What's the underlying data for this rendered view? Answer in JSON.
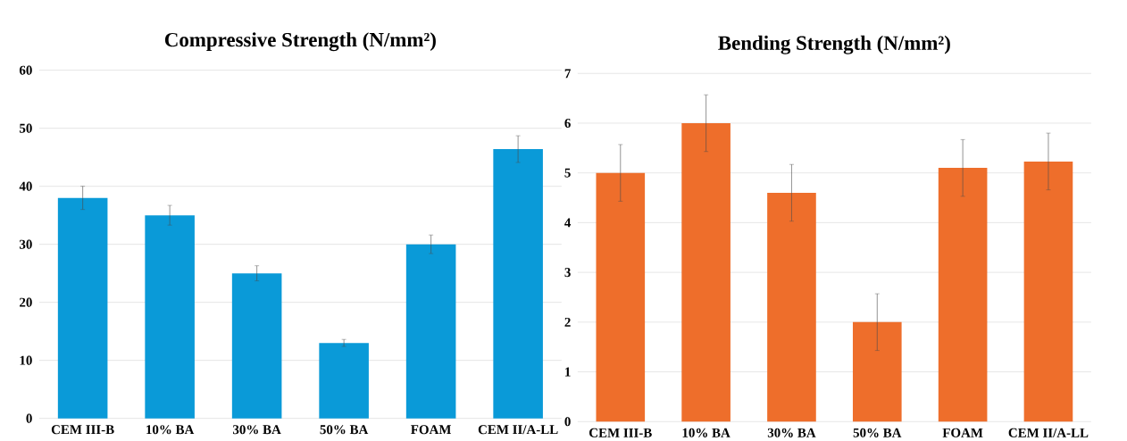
{
  "chart_data": [
    {
      "type": "bar",
      "title": "Compressive Strength (N/mm²)",
      "categories": [
        "CEM III-B",
        "10% BA",
        "30% BA",
        "50% BA",
        "FOAM",
        "CEM II/A-LL"
      ],
      "values": [
        38,
        35,
        25,
        13,
        30,
        46.4
      ],
      "errors": [
        2,
        1.7,
        1.3,
        0.6,
        1.6,
        2.3
      ],
      "color": "#0a9ad8",
      "ylim": [
        0,
        60
      ],
      "yticks": [
        0,
        10,
        20,
        30,
        40,
        50,
        60
      ],
      "grid": "y"
    },
    {
      "type": "bar",
      "title": "Bending Strength (N/mm²)",
      "categories": [
        "CEM III-B",
        "10% BA",
        "30% BA",
        "50% BA",
        "FOAM",
        "CEM II/A-LL"
      ],
      "values": [
        5,
        6,
        4.6,
        2,
        5.1,
        5.23
      ],
      "errors": [
        0.57,
        0.57,
        0.57,
        0.57,
        0.57,
        0.57
      ],
      "color": "#ee6e2b",
      "ylim": [
        0,
        7
      ],
      "yticks": [
        0,
        1,
        2,
        3,
        4,
        5,
        6,
        7
      ],
      "grid": "y"
    }
  ]
}
